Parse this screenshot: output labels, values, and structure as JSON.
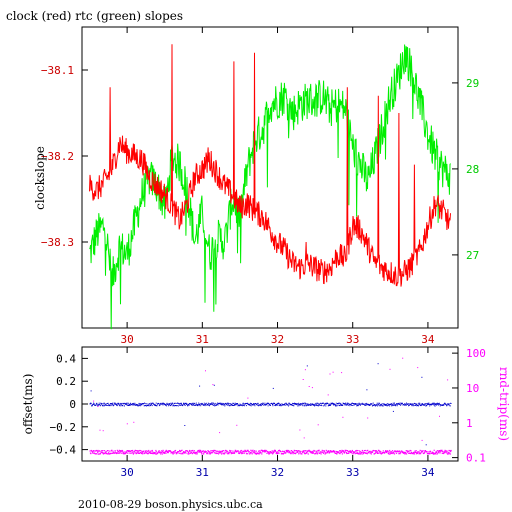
{
  "title": "clock (red) rtc (green) slopes",
  "footer": "2010-08-29  boson.physics.ubc.ca",
  "colors": {
    "clock": "#ff0000",
    "rtc": "#00ee00",
    "offset": "#0000cc",
    "rndtrip": "#ff00ff"
  },
  "chart_data": [
    {
      "type": "line",
      "title": "clock (red) rtc (green) slopes",
      "xlabel": "",
      "ylabel": "clockslope",
      "xlim": [
        29.4,
        34.4
      ],
      "ylim": [
        -38.4,
        -38.05
      ],
      "y2lim": [
        26.15,
        29.65
      ],
      "xticks": [
        "30",
        "31",
        "32",
        "33",
        "34"
      ],
      "yticks": [
        "-38.1",
        "-38.2",
        "-38.3"
      ],
      "y2ticks": [
        "29",
        "28",
        "27"
      ],
      "series": [
        {
          "name": "clock",
          "color": "red",
          "axis": "left",
          "x": [
            29.5,
            29.6,
            29.7,
            29.8,
            29.9,
            30.0,
            30.1,
            30.2,
            30.3,
            30.4,
            30.5,
            30.6,
            30.7,
            30.8,
            30.9,
            31.0,
            31.1,
            31.2,
            31.3,
            31.4,
            31.5,
            31.6,
            31.7,
            31.8,
            31.9,
            32.0,
            32.1,
            32.2,
            32.3,
            32.4,
            32.5,
            32.6,
            32.7,
            32.8,
            32.9,
            33.0,
            33.1,
            33.2,
            33.3,
            33.4,
            33.5,
            33.6,
            33.7,
            33.8,
            33.9,
            34.0,
            34.1,
            34.2,
            34.3
          ],
          "y": [
            -38.235,
            -38.24,
            -38.23,
            -38.215,
            -38.185,
            -38.195,
            -38.2,
            -38.205,
            -38.225,
            -38.235,
            -38.245,
            -38.26,
            -38.275,
            -38.255,
            -38.225,
            -38.215,
            -38.205,
            -38.22,
            -38.235,
            -38.245,
            -38.26,
            -38.255,
            -38.265,
            -38.27,
            -38.285,
            -38.3,
            -38.31,
            -38.325,
            -38.33,
            -38.325,
            -38.33,
            -38.335,
            -38.33,
            -38.315,
            -38.32,
            -38.28,
            -38.285,
            -38.305,
            -38.325,
            -38.33,
            -38.335,
            -38.34,
            -38.335,
            -38.325,
            -38.31,
            -38.28,
            -38.255,
            -38.265,
            -38.28
          ]
        },
        {
          "name": "rtc",
          "color": "green",
          "axis": "right",
          "x": [
            29.5,
            29.6,
            29.7,
            29.8,
            29.9,
            30.0,
            30.1,
            30.2,
            30.3,
            30.4,
            30.5,
            30.6,
            30.7,
            30.8,
            30.9,
            31.0,
            31.1,
            31.2,
            31.3,
            31.4,
            31.5,
            31.6,
            31.7,
            31.8,
            31.9,
            32.0,
            32.1,
            32.2,
            32.3,
            32.4,
            32.5,
            32.6,
            32.7,
            32.8,
            32.9,
            33.0,
            33.1,
            33.2,
            33.3,
            33.4,
            33.5,
            33.6,
            33.7,
            33.8,
            33.9,
            34.0,
            34.1,
            34.2,
            34.3
          ],
          "y": [
            27.0,
            27.25,
            27.35,
            26.7,
            27.1,
            27.0,
            27.35,
            27.7,
            27.9,
            27.8,
            27.55,
            28.15,
            28.05,
            27.75,
            27.15,
            27.5,
            27.0,
            27.2,
            27.15,
            27.65,
            27.45,
            28.0,
            28.35,
            28.45,
            28.75,
            28.8,
            28.85,
            28.65,
            28.75,
            28.8,
            28.8,
            28.85,
            28.7,
            28.75,
            28.7,
            28.25,
            28.05,
            27.85,
            28.15,
            28.5,
            28.85,
            29.05,
            29.35,
            29.1,
            28.75,
            28.4,
            28.15,
            28.0,
            27.9
          ]
        }
      ]
    },
    {
      "type": "scatter",
      "xlabel": "",
      "ylabel": "offset(ms)",
      "y2label": "rnd-trip(ms)",
      "xlim": [
        29.4,
        34.4
      ],
      "ylim": [
        -0.5,
        0.5
      ],
      "y2scale": "log",
      "y2lim": [
        0.08,
        150
      ],
      "xticks": [
        "30",
        "31",
        "32",
        "33",
        "34"
      ],
      "yticks": [
        "0.4",
        "0.2",
        "0",
        "-0.2",
        "-0.4"
      ],
      "y2ticks": [
        "100",
        "10",
        "1",
        "0.1"
      ],
      "series": [
        {
          "name": "offset",
          "color": "blue",
          "axis": "left",
          "x_range": [
            29.5,
            34.3
          ],
          "y_center": 0.0
        },
        {
          "name": "rnd-trip",
          "color": "magenta",
          "axis": "right",
          "x_range": [
            29.5,
            34.3
          ],
          "y_center": 0.15
        }
      ]
    }
  ]
}
